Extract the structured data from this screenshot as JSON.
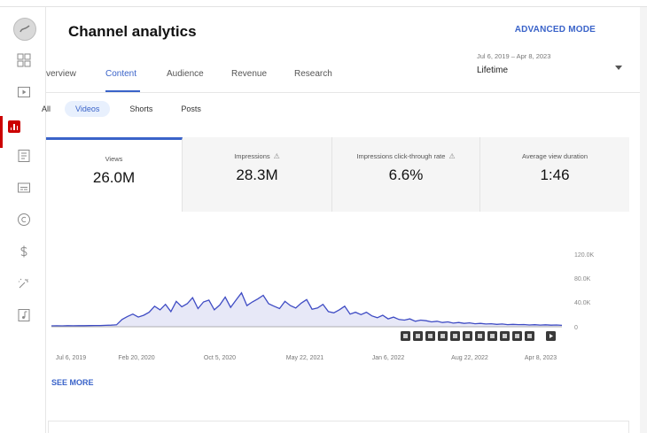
{
  "header": {
    "title": "Channel analytics",
    "advanced_mode": "ADVANCED MODE"
  },
  "tabs": [
    {
      "label": "verview",
      "active": false
    },
    {
      "label": "Content",
      "active": true
    },
    {
      "label": "Audience",
      "active": false
    },
    {
      "label": "Revenue",
      "active": false
    },
    {
      "label": "Research",
      "active": false
    }
  ],
  "date_range": {
    "range": "Jul 6, 2019 – Apr 8, 2023",
    "period": "Lifetime"
  },
  "chips": [
    {
      "label": "All",
      "selected": false
    },
    {
      "label": "Videos",
      "selected": true
    },
    {
      "label": "Shorts",
      "selected": false
    },
    {
      "label": "Posts",
      "selected": false
    }
  ],
  "metrics": [
    {
      "label": "Views",
      "value": "26.0M",
      "warning": false,
      "active": true
    },
    {
      "label": "Impressions",
      "value": "28.3M",
      "warning": true,
      "active": false
    },
    {
      "label": "Impressions click-through rate",
      "value": "6.6%",
      "warning": true,
      "active": false
    },
    {
      "label": "Average view duration",
      "value": "1:46",
      "warning": false,
      "active": false
    }
  ],
  "chart": {
    "y_ticks": [
      "120.0K",
      "80.0K",
      "40.0K",
      "0"
    ],
    "x_ticks": [
      "Jul 6, 2019",
      "Feb 20, 2020",
      "Oct 5, 2020",
      "May 22, 2021",
      "Jan 6, 2022",
      "Aug 22, 2022",
      "Apr 8, 2023"
    ],
    "line_color": "#3f4cc4",
    "fill_color": "#e7e8f7"
  },
  "chart_data": {
    "type": "area",
    "series": [
      {
        "values": [
          1500,
          1600,
          1500,
          1700,
          1600,
          1800,
          1700,
          1900,
          2000,
          2100,
          2300,
          2600,
          3200,
          12000,
          17000,
          21000,
          16000,
          19000,
          24000,
          34000,
          28000,
          37000,
          25000,
          42000,
          33000,
          38000,
          48000,
          30000,
          41000,
          44000,
          28000,
          36000,
          49000,
          32000,
          44000,
          56000,
          35000,
          41000,
          46000,
          52000,
          38000,
          34000,
          30000,
          42000,
          35000,
          31000,
          39000,
          45000,
          29000,
          31000,
          37000,
          25000,
          23000,
          28000,
          34000,
          21000,
          24000,
          20000,
          24000,
          18000,
          15000,
          19000,
          13000,
          16000,
          12000,
          11000,
          13000,
          9000,
          11000,
          10000,
          8000,
          9000,
          7000,
          8000,
          6000,
          7000,
          5500,
          6500,
          5000,
          5500,
          4500,
          5000,
          4000,
          4500,
          3500,
          4000,
          3500,
          3600,
          3000,
          3400,
          2800,
          3200,
          2600,
          3000,
          2400
        ]
      }
    ],
    "x_ticks": [
      "Jul 6, 2019",
      "Feb 20, 2020",
      "Oct 5, 2020",
      "May 22, 2021",
      "Jan 6, 2022",
      "Aug 22, 2022",
      "Apr 8, 2023"
    ],
    "y_ticks": [
      "120.0K",
      "80.0K",
      "40.0K",
      "0"
    ],
    "ylim": [
      0,
      120000
    ]
  },
  "see_more": "SEE MORE",
  "sidebar": {
    "icons": [
      "channel-avatar",
      "dashboard-icon",
      "content-icon",
      "analytics-icon",
      "comments-icon",
      "subtitles-icon",
      "copyright-icon",
      "earn-icon",
      "customization-icon",
      "audio-library-icon"
    ]
  }
}
